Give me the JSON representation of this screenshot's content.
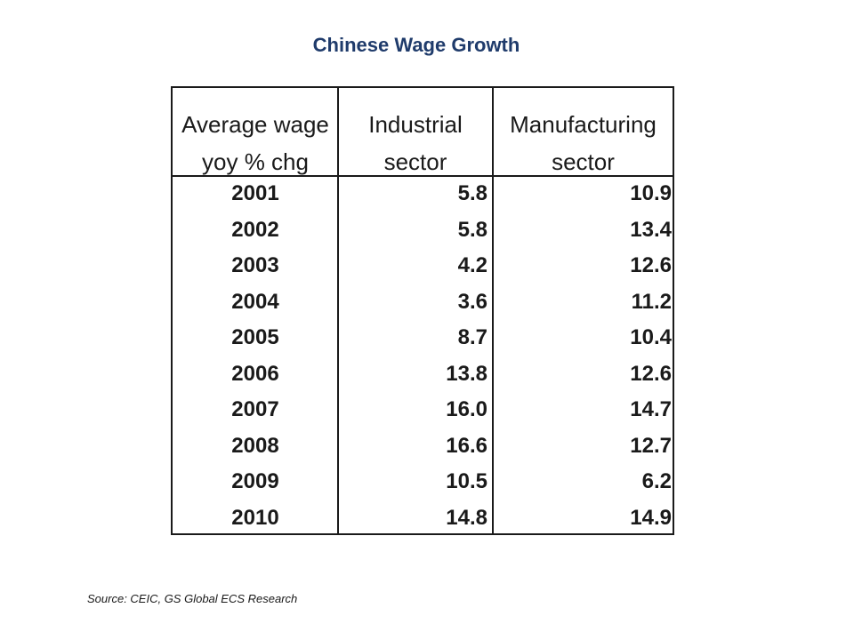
{
  "title": "Chinese Wage Growth",
  "source": "Source: CEIC, GS Global ECS Research",
  "chart_data": {
    "type": "table",
    "title": "Chinese Wage Growth",
    "columns": [
      {
        "line1": "Average wage",
        "line2": "yoy % chg"
      },
      {
        "line1": "Industrial",
        "line2": "sector"
      },
      {
        "line1": "Manufacturing",
        "line2": "sector"
      }
    ],
    "rows": [
      {
        "year": "2001",
        "industrial": "5.8",
        "manufacturing": "10.9"
      },
      {
        "year": "2002",
        "industrial": "5.8",
        "manufacturing": "13.4"
      },
      {
        "year": "2003",
        "industrial": "4.2",
        "manufacturing": "12.6"
      },
      {
        "year": "2004",
        "industrial": "3.6",
        "manufacturing": "11.2"
      },
      {
        "year": "2005",
        "industrial": "8.7",
        "manufacturing": "10.4"
      },
      {
        "year": "2006",
        "industrial": "13.8",
        "manufacturing": "12.6"
      },
      {
        "year": "2007",
        "industrial": "16.0",
        "manufacturing": "14.7"
      },
      {
        "year": "2008",
        "industrial": "16.6",
        "manufacturing": "12.7"
      },
      {
        "year": "2009",
        "industrial": "10.5",
        "manufacturing": "6.2"
      },
      {
        "year": "2010",
        "industrial": "14.8",
        "manufacturing": "14.9"
      }
    ]
  }
}
